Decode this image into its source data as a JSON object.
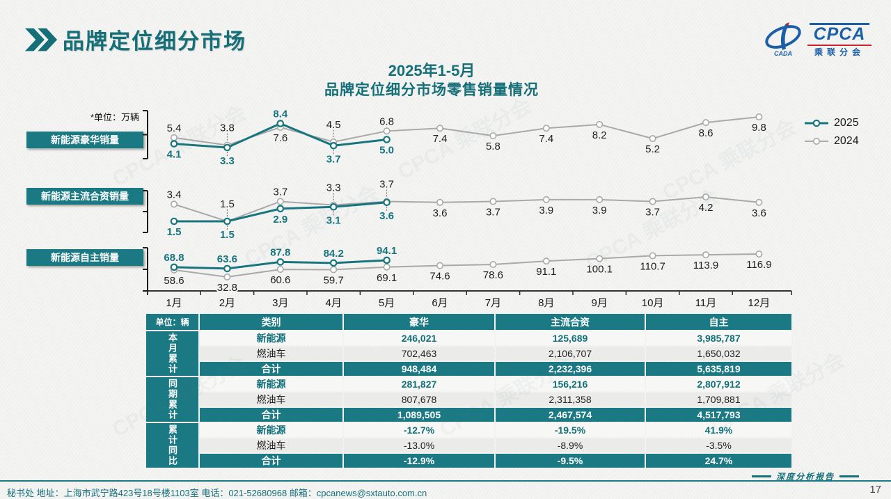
{
  "page": {
    "title": "品牌定位细分市场",
    "page_number": "17",
    "watermark": "CPCA 乘联分会"
  },
  "theme": {
    "teal_primary": "#156f78",
    "teal_fill": "#1a7983",
    "series_2025": "#17757e",
    "series_2024": "#a9a9a9",
    "logo_blue": "#1a5fa8",
    "logo_red": "#cc2229"
  },
  "logo": {
    "name": "CPCA",
    "subtitle": "乘联分会",
    "emblem_text": "CADA"
  },
  "chart": {
    "title_line1": "2025年1-5月",
    "title_line2": "品牌定位细分市场零售销量情况",
    "unit_note": "*单位：万辆",
    "legend": [
      "2025",
      "2024"
    ]
  },
  "chart_data": [
    {
      "type": "line",
      "title": "新能源豪华销量",
      "categories": [
        "1月",
        "2月",
        "3月",
        "4月",
        "5月",
        "6月",
        "7月",
        "8月",
        "9月",
        "10月",
        "11月",
        "12月"
      ],
      "series": [
        {
          "name": "2025",
          "values": [
            4.1,
            3.3,
            8.4,
            3.7,
            5.0
          ]
        },
        {
          "name": "2024",
          "values": [
            5.4,
            3.8,
            7.6,
            4.5,
            6.8,
            7.4,
            5.8,
            7.4,
            8.2,
            5.2,
            8.6,
            9.8
          ]
        }
      ]
    },
    {
      "type": "line",
      "title": "新能源主流合资销量",
      "categories": [
        "1月",
        "2月",
        "3月",
        "4月",
        "5月",
        "6月",
        "7月",
        "8月",
        "9月",
        "10月",
        "11月",
        "12月"
      ],
      "series": [
        {
          "name": "2025",
          "values": [
            1.5,
            1.5,
            2.9,
            3.1,
            3.6
          ]
        },
        {
          "name": "2024",
          "values": [
            3.4,
            1.5,
            3.7,
            3.3,
            3.7,
            3.6,
            3.7,
            3.9,
            3.9,
            3.7,
            4.2,
            3.6
          ]
        }
      ]
    },
    {
      "type": "line",
      "title": "新能源自主销量",
      "categories": [
        "1月",
        "2月",
        "3月",
        "4月",
        "5月",
        "6月",
        "7月",
        "8月",
        "9月",
        "10月",
        "11月",
        "12月"
      ],
      "series": [
        {
          "name": "2025",
          "values": [
            68.8,
            63.6,
            87.8,
            84.2,
            94.1
          ]
        },
        {
          "name": "2024",
          "values": [
            58.6,
            32.8,
            60.6,
            59.7,
            69.1,
            74.6,
            78.6,
            91.1,
            100.1,
            110.7,
            113.9,
            116.9
          ]
        }
      ]
    }
  ],
  "table": {
    "unit_header": "单位：辆",
    "columns": [
      "类别",
      "豪华",
      "主流合资",
      "自主"
    ],
    "groups": [
      {
        "label": "本月累计",
        "rows": [
          {
            "category": "新能源",
            "kind": "nev",
            "values": [
              "246,021",
              "125,689",
              "3,985,787"
            ]
          },
          {
            "category": "燃油车",
            "kind": "ice",
            "values": [
              "702,463",
              "2,106,707",
              "1,650,032"
            ]
          },
          {
            "category": "合计",
            "kind": "total",
            "values": [
              "948,484",
              "2,232,396",
              "5,635,819"
            ]
          }
        ]
      },
      {
        "label": "同期累计",
        "rows": [
          {
            "category": "新能源",
            "kind": "nev",
            "values": [
              "281,827",
              "156,216",
              "2,807,912"
            ]
          },
          {
            "category": "燃油车",
            "kind": "ice",
            "values": [
              "807,678",
              "2,311,358",
              "1,709,881"
            ]
          },
          {
            "category": "合计",
            "kind": "total",
            "values": [
              "1,089,505",
              "2,467,574",
              "4,517,793"
            ]
          }
        ]
      },
      {
        "label": "累计同比",
        "rows": [
          {
            "category": "新能源",
            "kind": "nev",
            "values": [
              "-12.7%",
              "-19.5%",
              "41.9%"
            ]
          },
          {
            "category": "燃油车",
            "kind": "ice",
            "values": [
              "-13.0%",
              "-8.9%",
              "-3.5%"
            ]
          },
          {
            "category": "合计",
            "kind": "total",
            "values": [
              "-12.9%",
              "-9.5%",
              "24.7%"
            ]
          }
        ]
      }
    ]
  },
  "footer": {
    "contact": "秘书处   地址：上海市武宁路423号18号楼1103室  电话：021-52680968   邮箱：cpcanews@sxtauto.com.cn",
    "report_label": "深度分析报告"
  }
}
